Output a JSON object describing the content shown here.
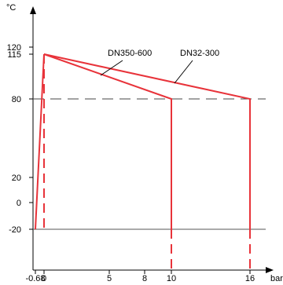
{
  "chart_data": {
    "type": "line",
    "title": "",
    "xlabel": "bar",
    "ylabel": "°C",
    "xlim": [
      -0.68,
      16
    ],
    "ylim": [
      -20,
      120
    ],
    "x_ticks": [
      -0.68,
      0,
      5,
      8,
      10,
      16
    ],
    "x_tick_labels": [
      "-0.68",
      "0",
      "5",
      "8",
      "10",
      "16"
    ],
    "y_ticks": [
      -20,
      0,
      20,
      80,
      115,
      120
    ],
    "y_tick_labels": [
      "-20",
      "0",
      "20",
      "80",
      "115",
      "120"
    ],
    "grid": false,
    "reference_lines": [
      {
        "axis": "y",
        "value": 80,
        "style": "dashed"
      },
      {
        "axis": "y",
        "value": -20,
        "style": "solid"
      }
    ],
    "series": [
      {
        "name": "DN350-600",
        "color": "#e8333a",
        "points": [
          [
            0,
            115
          ],
          [
            10,
            80
          ],
          [
            10,
            -20
          ]
        ]
      },
      {
        "name": "DN32-300",
        "color": "#e8333a",
        "points": [
          [
            0,
            115
          ],
          [
            16,
            80
          ],
          [
            16,
            -20
          ]
        ]
      }
    ],
    "extra_lines": [
      {
        "style": "solid",
        "color": "#e8333a",
        "points": [
          [
            -0.68,
            -20
          ],
          [
            0,
            115
          ]
        ]
      },
      {
        "style": "dashed",
        "color": "#e8333a",
        "points": [
          [
            0,
            115
          ],
          [
            0,
            -20
          ]
        ]
      },
      {
        "style": "dashed",
        "color": "#e8333a",
        "points": [
          [
            10,
            -20
          ],
          [
            10,
            -36
          ]
        ]
      },
      {
        "style": "dashed",
        "color": "#e8333a",
        "points": [
          [
            16,
            -20
          ],
          [
            16,
            -36
          ]
        ]
      }
    ]
  }
}
